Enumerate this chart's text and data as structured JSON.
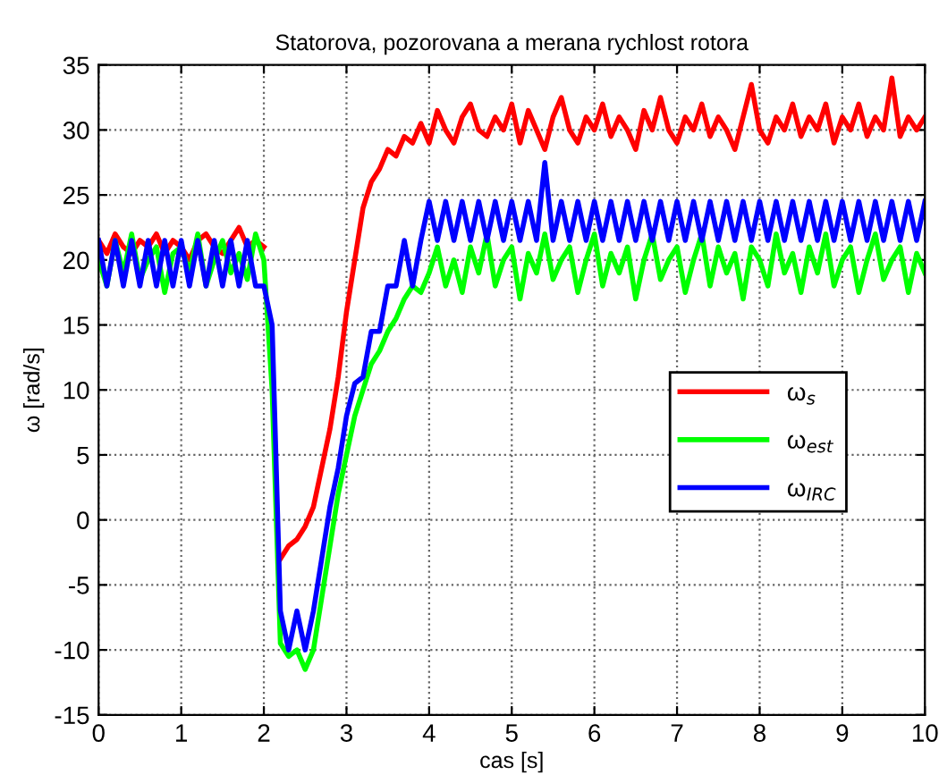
{
  "chart_data": {
    "type": "line",
    "title": "Statorova, pozorovana a merana rychlost rotora",
    "xlabel": "cas [s]",
    "ylabel": "ω [rad/s]",
    "x": [
      0,
      0.1,
      0.2,
      0.3,
      0.4,
      0.5,
      0.6,
      0.7,
      0.8,
      0.9,
      1.0,
      1.1,
      1.2,
      1.3,
      1.4,
      1.5,
      1.6,
      1.7,
      1.8,
      1.9,
      2.0,
      2.1,
      2.2,
      2.3,
      2.4,
      2.5,
      2.6,
      2.7,
      2.8,
      2.9,
      3.0,
      3.1,
      3.2,
      3.3,
      3.4,
      3.5,
      3.6,
      3.7,
      3.8,
      3.9,
      4.0,
      4.1,
      4.2,
      4.3,
      4.4,
      4.5,
      4.6,
      4.7,
      4.8,
      4.9,
      5.0,
      5.1,
      5.2,
      5.3,
      5.4,
      5.5,
      5.6,
      5.7,
      5.8,
      5.9,
      6.0,
      6.1,
      6.2,
      6.3,
      6.4,
      6.5,
      6.6,
      6.7,
      6.8,
      6.9,
      7.0,
      7.1,
      7.2,
      7.3,
      7.4,
      7.5,
      7.6,
      7.7,
      7.8,
      7.9,
      8.0,
      8.1,
      8.2,
      8.3,
      8.4,
      8.5,
      8.6,
      8.7,
      8.8,
      8.9,
      9.0,
      9.1,
      9.2,
      9.3,
      9.4,
      9.5,
      9.6,
      9.7,
      9.8,
      9.9,
      10.0
    ],
    "series": [
      {
        "name": "ω$_{s}$",
        "color": "#ff0000",
        "values": [
          21.5,
          20.5,
          22,
          21,
          20.5,
          21.5,
          21,
          22,
          20.5,
          21.5,
          21,
          20,
          21.5,
          22,
          21,
          20.5,
          21.5,
          22.5,
          21,
          21.5,
          21,
          null,
          -3,
          -2,
          -1.5,
          -0.5,
          1,
          4,
          7,
          11,
          16,
          20,
          24,
          26,
          27,
          28.5,
          28,
          29.5,
          29,
          30.5,
          29,
          31.5,
          30,
          29,
          31,
          32,
          30,
          29.5,
          31,
          30,
          32,
          29,
          31.5,
          30,
          28.5,
          31,
          32.5,
          30,
          29,
          31,
          30,
          32,
          29.5,
          31,
          30,
          28.5,
          31.5,
          30,
          32.5,
          30,
          29,
          31,
          30,
          32,
          29.5,
          31,
          30,
          28.5,
          31,
          33.5,
          30,
          29,
          31,
          30,
          32,
          29.5,
          31,
          30,
          32,
          29,
          31,
          30,
          32,
          29.5,
          31,
          30,
          34,
          29.5,
          31,
          30,
          31
        ]
      },
      {
        "name": "ω$_{est}$",
        "color": "#00ff00",
        "values": [
          20,
          18,
          21.5,
          19,
          22,
          18.5,
          20,
          21,
          17.5,
          20.5,
          21,
          19,
          22,
          18,
          20,
          21.5,
          19,
          20.5,
          18.5,
          22,
          20,
          10,
          -9.5,
          -10.5,
          -10,
          -11.5,
          -10,
          -6,
          -2,
          2,
          5,
          8,
          10,
          12,
          13,
          14.5,
          15.5,
          17,
          18,
          17.5,
          19,
          21,
          18,
          20,
          17.5,
          21,
          19,
          22,
          18,
          20,
          21,
          17,
          20.5,
          19,
          22,
          18.5,
          20,
          21,
          17.5,
          20,
          22,
          18,
          20.5,
          19,
          21,
          17,
          20,
          22,
          18.5,
          20,
          21,
          17.5,
          20,
          22,
          18,
          21,
          19,
          20.5,
          17,
          21,
          20,
          18,
          22,
          19,
          20.5,
          17.5,
          21,
          19,
          22,
          18,
          20,
          21,
          17.5,
          20,
          22,
          18.5,
          20,
          21,
          17.5,
          20.5,
          19
        ]
      },
      {
        "name": "ω$_{IRC}$",
        "color": "#0000ff",
        "values": [
          21.5,
          18,
          21.5,
          18,
          21.5,
          18,
          21.5,
          18,
          21.5,
          18,
          21.5,
          18,
          21.5,
          18,
          21.5,
          18,
          21.5,
          18,
          21.5,
          18,
          18,
          15,
          -7,
          -10,
          -7,
          -10,
          -7,
          -3,
          1,
          4,
          8,
          10.5,
          11,
          14.5,
          14.5,
          18,
          18,
          21.5,
          18,
          21.5,
          24.5,
          21.5,
          24.5,
          21.5,
          24.5,
          21.5,
          24.5,
          21.5,
          24.5,
          21.5,
          24.5,
          21.5,
          24.5,
          21.5,
          27.5,
          21.5,
          24.5,
          21.5,
          24.5,
          21.5,
          24.5,
          21.5,
          24.5,
          21.5,
          24.5,
          21.5,
          24.5,
          21.5,
          24.5,
          21.5,
          24.5,
          21.5,
          24.5,
          21.5,
          24.5,
          21.5,
          24.5,
          21.5,
          24.5,
          21.5,
          24.5,
          21.5,
          24.5,
          21.5,
          24.5,
          21.5,
          24.5,
          21.5,
          24.5,
          21.5,
          24.5,
          21.5,
          24.5,
          21.5,
          24.5,
          21.5,
          24.5,
          21.5,
          24.5,
          21.5,
          24.5
        ]
      }
    ],
    "xlim": [
      0,
      10
    ],
    "ylim": [
      -15,
      35
    ],
    "xticks": [
      0,
      1,
      2,
      3,
      4,
      5,
      6,
      7,
      8,
      9,
      10
    ],
    "yticks": [
      -15,
      -10,
      -5,
      0,
      5,
      10,
      15,
      20,
      25,
      30,
      35
    ],
    "grid": true,
    "legend": "center right",
    "line_style": "solid",
    "marker": "none"
  }
}
